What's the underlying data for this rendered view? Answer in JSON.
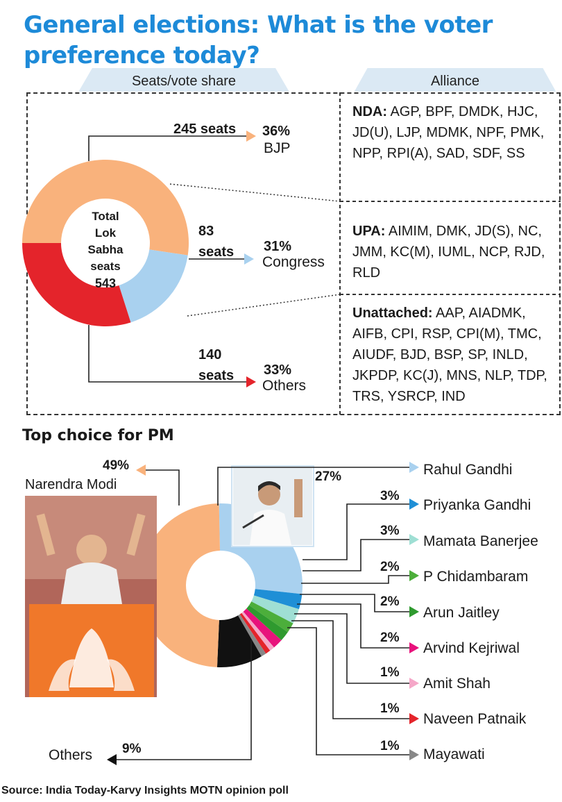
{
  "title": "General elections: What is the voter preference today?",
  "tabs": {
    "left": "Seats/vote share",
    "right": "Alliance"
  },
  "donut_center": {
    "line1": "Total",
    "line2": "Lok Sabha",
    "line3": "seats",
    "line4": "543"
  },
  "source": "Source: India Today-Karvy Insights MOTN opinion poll",
  "pm_title": "Top choice for PM",
  "alliances": {
    "nda": {
      "label": "NDA:",
      "members": "AGP, BPF, DMDK, HJC, JD(U), LJP, MDMK, NPF, PMK, NPP, RPI(A), SAD, SDF, SS"
    },
    "upa": {
      "label": "UPA:",
      "members": "AIMIM, DMK, JD(S), NC, JMM, KC(M), IUML, NCP, RJD, RLD"
    },
    "unattached": {
      "label": "Unattached:",
      "members": "AAP, AIADMK, AIFB, CPI, RSP, CPI(M), TMC, AIUDF, BJD, BSP, SP, INLD, JKPDP, KC(J), MNS, NLP, TDP, TRS, YSRCP, IND"
    }
  },
  "colors": {
    "bjp": "#f9b27c",
    "congress": "#a9d1ef",
    "others": "#e4242b",
    "title": "#1d8ad8",
    "modi": "#f9b27c",
    "rahul": "#a9d1ef",
    "priyanka": "#1f8fd6",
    "mamata": "#9fdfd4",
    "chidambaram": "#4cae3b",
    "jaitley": "#2f9a2f",
    "kejriwal": "#e8127c",
    "amitshah": "#f5a7c8",
    "patnaik": "#e4242b",
    "mayawati": "#888888",
    "pm_others": "#111111"
  },
  "chart_data": [
    {
      "type": "pie",
      "title": "Seats/vote share",
      "center_total": 543,
      "series": [
        {
          "name": "BJP",
          "seats": 245,
          "seats_label": "245 seats",
          "vote_share": 36,
          "vote_label": "36%"
        },
        {
          "name": "Congress",
          "seats": 83,
          "seats_label": "83 seats",
          "vote_share": 31,
          "vote_label": "31%"
        },
        {
          "name": "Others",
          "seats": 140,
          "seats_label": "140 seats",
          "vote_share": 33,
          "vote_label": "33%"
        }
      ]
    },
    {
      "type": "pie",
      "title": "Top choice for PM",
      "categories": [
        "Narendra Modi",
        "Rahul Gandhi",
        "Priyanka Gandhi",
        "Mamata Banerjee",
        "P Chidambaram",
        "Arun Jaitley",
        "Arvind Kejriwal",
        "Amit Shah",
        "Naveen Patnaik",
        "Mayawati",
        "Others"
      ],
      "values": [
        49,
        27,
        3,
        3,
        2,
        2,
        2,
        1,
        1,
        1,
        9
      ],
      "labels": [
        "49%",
        "27%",
        "3%",
        "3%",
        "2%",
        "2%",
        "2%",
        "1%",
        "1%",
        "1%",
        "9%"
      ]
    }
  ]
}
